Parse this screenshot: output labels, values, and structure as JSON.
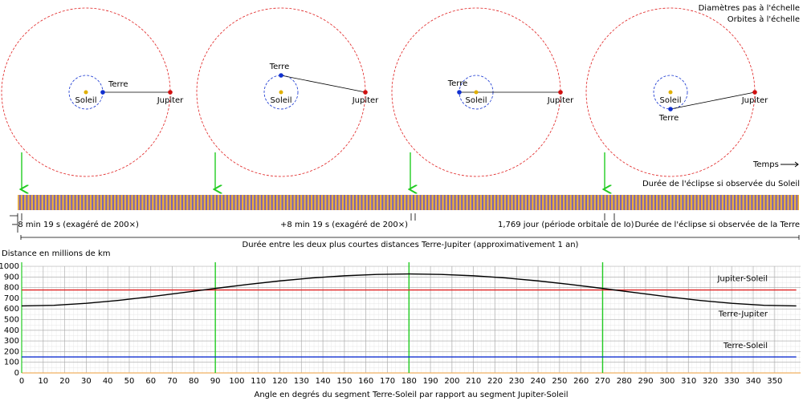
{
  "diagram": {
    "notes": [
      "Diamètres pas à l'échelle",
      "Orbites à l'échelle"
    ],
    "panels": [
      {
        "sun": "Soleil",
        "earth": "Terre",
        "jupiter": "Jupiter"
      },
      {
        "sun": "Soleil",
        "earth": "Terre",
        "jupiter": "Jupiter"
      },
      {
        "sun": "Soleil",
        "earth": "Terre",
        "jupiter": "Jupiter"
      },
      {
        "sun": "Soleil",
        "earth": "Terre",
        "jupiter": "Jupiter"
      }
    ],
    "time_label": "Temps",
    "eclipse_sun": "Durée de l'éclipse si observée du Soleil",
    "minus_delay": "−8 min 19 s (exagéré de 200×)",
    "plus_delay": "+8 min 19 s (exagéré de 200×)",
    "io_period": "1,769 jour (période orbitale de Io)",
    "eclipse_earth": "Durée de l'éclipse si observée de la Terre",
    "year_span": "Durée entre les deux plus courtes distances Terre-Jupiter (approximativement 1 an)"
  },
  "chart_data": {
    "type": "line",
    "y_label": "Distance en millions de km",
    "x_label": "Angle en degrés du segment Terre-Soleil par rapport au segment Jupiter-Soleil",
    "x": [
      0,
      15,
      30,
      45,
      60,
      75,
      90,
      105,
      120,
      135,
      150,
      165,
      180,
      195,
      210,
      225,
      240,
      255,
      270,
      285,
      300,
      315,
      330,
      345,
      360
    ],
    "series": [
      {
        "name": "Jupiter-Soleil",
        "color": "#e02020",
        "values": [
          778,
          778,
          778,
          778,
          778,
          778,
          778,
          778,
          778,
          778,
          778,
          778,
          778,
          778,
          778,
          778,
          778,
          778,
          778,
          778,
          778,
          778,
          778,
          778,
          778
        ]
      },
      {
        "name": "Terre-Jupiter",
        "color": "#000000",
        "values": [
          628,
          634.3,
          652.4,
          680.3,
          714.9,
          753.2,
          792.3,
          829.6,
          862.8,
          890.2,
          910.7,
          923.7,
          928,
          923.7,
          910.7,
          890.2,
          862.8,
          829.6,
          792.3,
          753.2,
          714.9,
          680.3,
          652.4,
          634.3,
          628
        ]
      },
      {
        "name": "Terre-Soleil",
        "color": "#1030d0",
        "values": [
          150,
          150,
          150,
          150,
          150,
          150,
          150,
          150,
          150,
          150,
          150,
          150,
          150,
          150,
          150,
          150,
          150,
          150,
          150,
          150,
          150,
          150,
          150,
          150,
          150
        ]
      }
    ],
    "vlines": [
      90,
      180,
      270
    ],
    "vline_color": "#22cc22",
    "xlim": [
      0,
      362
    ],
    "ylim": [
      0,
      1000
    ],
    "xticks": [
      0,
      10,
      20,
      30,
      40,
      50,
      60,
      70,
      80,
      90,
      100,
      110,
      120,
      130,
      140,
      150,
      160,
      170,
      180,
      190,
      200,
      210,
      220,
      230,
      240,
      250,
      260,
      270,
      280,
      290,
      300,
      310,
      320,
      330,
      340,
      350
    ],
    "yticks": [
      0,
      100,
      200,
      300,
      400,
      500,
      600,
      700,
      800,
      900,
      1000
    ],
    "grid": true
  }
}
